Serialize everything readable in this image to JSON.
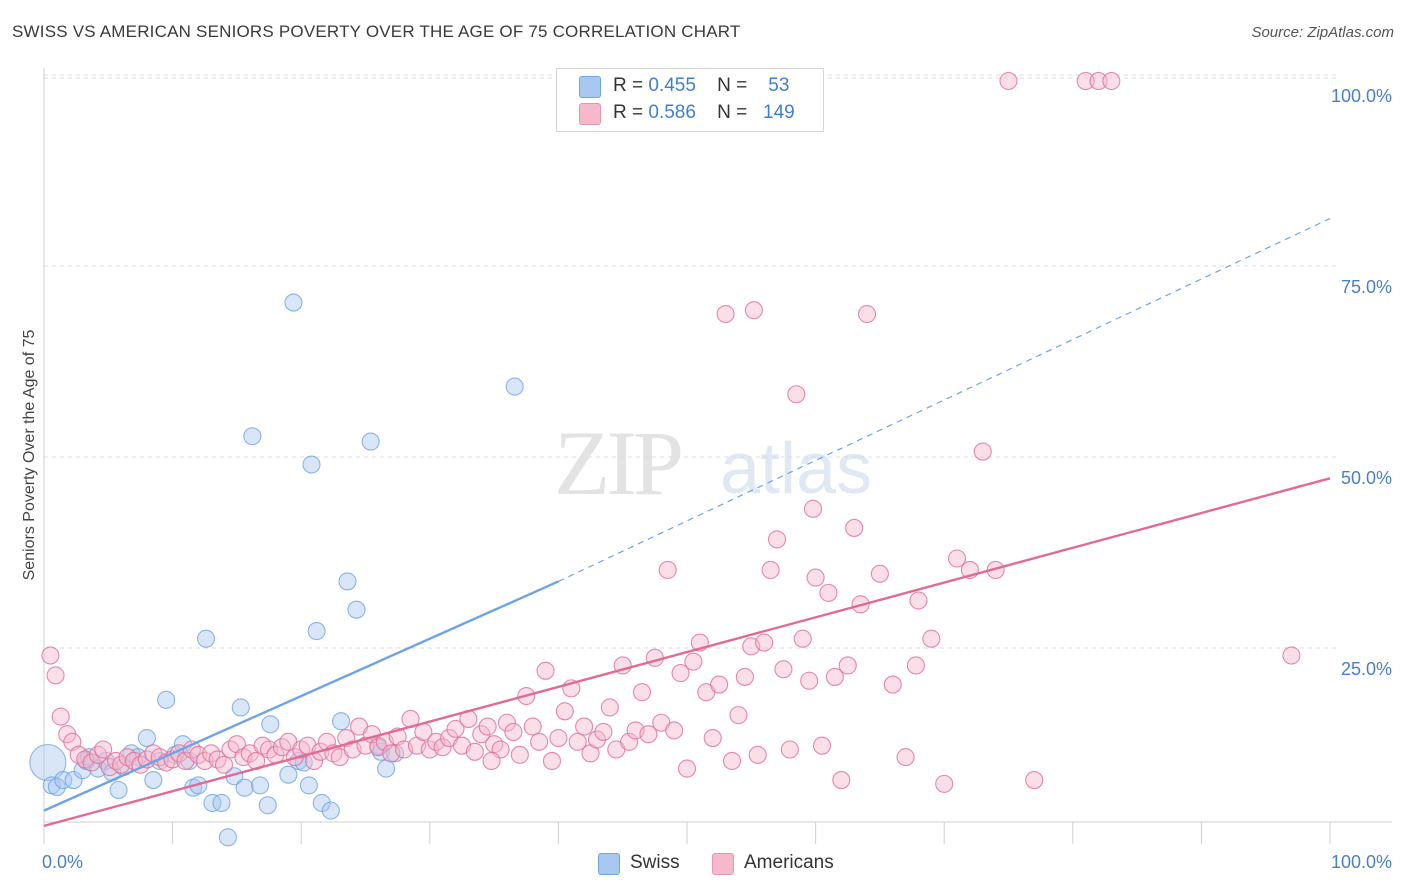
{
  "title": "SWISS VS AMERICAN SENIORS POVERTY OVER THE AGE OF 75 CORRELATION CHART",
  "source": "Source: ZipAtlas.com",
  "watermark": {
    "zip": "ZIP",
    "atlas": "atlas"
  },
  "legend": {
    "rows": [
      {
        "r_label": "R =",
        "r_value": "0.455",
        "n_label": "N =",
        "n_value": "53",
        "color": "#a9c8ef"
      },
      {
        "r_label": "R =",
        "r_value": "0.586",
        "n_label": "N =",
        "n_value": "149",
        "color": "#f6b9cc"
      }
    ]
  },
  "bottom_legend": {
    "swiss": "Swiss",
    "americans": "Americans"
  },
  "chart_data": {
    "type": "scatter",
    "title": "SWISS VS AMERICAN SENIORS POVERTY OVER THE AGE OF 75 CORRELATION CHART",
    "xlabel": "",
    "ylabel": "Seniors Poverty Over the Age of 75",
    "xlim": [
      0,
      100
    ],
    "ylim": [
      0,
      100
    ],
    "x_tick_labels": [
      "0.0%",
      "100.0%"
    ],
    "y_tick_labels": [
      "100.0%",
      "75.0%",
      "50.0%",
      "25.0%"
    ],
    "y_ticks": [
      100,
      75,
      50,
      25
    ],
    "grid": true,
    "legend_position": "top-center",
    "series": [
      {
        "name": "Swiss",
        "color": "#6ea4e4",
        "fill": "#a9c8ef",
        "trend": {
          "x0": 0,
          "y0": 4.5,
          "x1": 40,
          "y1": 34.5,
          "dash_to_x": 100,
          "dash_to_y": 82
        },
        "points": [
          [
            0.3,
            10.8
          ],
          [
            0.6,
            7.8
          ],
          [
            1.0,
            7.6
          ],
          [
            1.5,
            8.5
          ],
          [
            2.3,
            8.5
          ],
          [
            3.0,
            9.8
          ],
          [
            3.3,
            11.0
          ],
          [
            3.5,
            11.5
          ],
          [
            4.2,
            10.0
          ],
          [
            4.8,
            11.0
          ],
          [
            5.3,
            9.5
          ],
          [
            5.8,
            7.2
          ],
          [
            6.2,
            10.2
          ],
          [
            6.8,
            12.0
          ],
          [
            7.3,
            11.5
          ],
          [
            8.0,
            14.0
          ],
          [
            8.5,
            8.5
          ],
          [
            9.0,
            11.0
          ],
          [
            9.5,
            19.0
          ],
          [
            10.2,
            11.8
          ],
          [
            10.8,
            13.2
          ],
          [
            11.3,
            11.0
          ],
          [
            11.6,
            7.5
          ],
          [
            12.0,
            7.8
          ],
          [
            12.6,
            27.0
          ],
          [
            13.1,
            5.5
          ],
          [
            13.8,
            5.5
          ],
          [
            14.3,
            1.0
          ],
          [
            14.8,
            9.0
          ],
          [
            15.6,
            7.5
          ],
          [
            15.3,
            18.0
          ],
          [
            16.2,
            53.5
          ],
          [
            16.8,
            7.8
          ],
          [
            17.4,
            5.2
          ],
          [
            17.6,
            15.8
          ],
          [
            19.0,
            9.2
          ],
          [
            19.8,
            11.0
          ],
          [
            19.4,
            71.0
          ],
          [
            20.2,
            10.8
          ],
          [
            20.6,
            7.8
          ],
          [
            21.6,
            5.5
          ],
          [
            22.3,
            4.5
          ],
          [
            20.8,
            49.8
          ],
          [
            21.2,
            28.0
          ],
          [
            23.1,
            16.2
          ],
          [
            23.6,
            34.5
          ],
          [
            24.3,
            30.8
          ],
          [
            25.4,
            52.8
          ],
          [
            26.2,
            12.2
          ],
          [
            26.6,
            10.0
          ],
          [
            26.0,
            13.0
          ],
          [
            27.3,
            12.0
          ],
          [
            36.6,
            60.0
          ]
        ],
        "sizes_large": [
          [
            0.3,
            10.8
          ]
        ]
      },
      {
        "name": "Americans",
        "color": "#e06b97",
        "fill": "#f6b9cc",
        "trend": {
          "x0": 0,
          "y0": 2.5,
          "x1": 100,
          "y1": 48.0
        },
        "points": [
          [
            0.5,
            24.8
          ],
          [
            0.9,
            22.2
          ],
          [
            1.3,
            16.8
          ],
          [
            1.8,
            14.5
          ],
          [
            2.2,
            13.5
          ],
          [
            2.7,
            11.8
          ],
          [
            3.2,
            11.2
          ],
          [
            3.7,
            10.8
          ],
          [
            4.2,
            11.8
          ],
          [
            4.6,
            12.5
          ],
          [
            5.1,
            10.2
          ],
          [
            5.6,
            11.0
          ],
          [
            6.0,
            10.5
          ],
          [
            6.5,
            11.5
          ],
          [
            7.0,
            11.0
          ],
          [
            7.5,
            10.5
          ],
          [
            8.0,
            11.2
          ],
          [
            8.5,
            12.0
          ],
          [
            9.0,
            11.5
          ],
          [
            9.5,
            10.8
          ],
          [
            10.0,
            11.2
          ],
          [
            10.5,
            12.0
          ],
          [
            11.0,
            11.0
          ],
          [
            11.5,
            12.5
          ],
          [
            12.0,
            11.8
          ],
          [
            12.5,
            11.0
          ],
          [
            13.0,
            12.0
          ],
          [
            13.5,
            11.2
          ],
          [
            14.0,
            10.5
          ],
          [
            14.5,
            12.5
          ],
          [
            15.0,
            13.2
          ],
          [
            15.5,
            11.5
          ],
          [
            16.0,
            12.0
          ],
          [
            16.5,
            11.0
          ],
          [
            17.0,
            13.0
          ],
          [
            17.5,
            12.5
          ],
          [
            18.0,
            11.8
          ],
          [
            18.5,
            12.8
          ],
          [
            19.0,
            13.5
          ],
          [
            19.5,
            11.5
          ],
          [
            20.0,
            12.5
          ],
          [
            20.5,
            13.0
          ],
          [
            21.0,
            11.0
          ],
          [
            21.5,
            12.2
          ],
          [
            22.0,
            13.5
          ],
          [
            22.5,
            12.0
          ],
          [
            23.0,
            11.5
          ],
          [
            23.5,
            14.0
          ],
          [
            24.0,
            12.5
          ],
          [
            24.5,
            15.5
          ],
          [
            25.0,
            13.0
          ],
          [
            25.5,
            14.5
          ],
          [
            26.0,
            12.8
          ],
          [
            26.5,
            13.5
          ],
          [
            27.0,
            12.0
          ],
          [
            27.5,
            14.2
          ],
          [
            28.0,
            12.5
          ],
          [
            28.5,
            16.5
          ],
          [
            29.0,
            13.0
          ],
          [
            29.5,
            14.8
          ],
          [
            30.0,
            12.5
          ],
          [
            30.5,
            13.5
          ],
          [
            31.0,
            12.8
          ],
          [
            31.5,
            14.0
          ],
          [
            32.0,
            15.2
          ],
          [
            32.5,
            13.0
          ],
          [
            33.0,
            16.5
          ],
          [
            33.5,
            12.2
          ],
          [
            34.0,
            14.5
          ],
          [
            34.5,
            15.5
          ],
          [
            35.0,
            13.2
          ],
          [
            35.5,
            12.5
          ],
          [
            36.0,
            16.0
          ],
          [
            36.5,
            14.8
          ],
          [
            37.0,
            11.8
          ],
          [
            37.5,
            19.5
          ],
          [
            38.0,
            15.5
          ],
          [
            38.5,
            13.5
          ],
          [
            39.0,
            22.8
          ],
          [
            39.5,
            11.0
          ],
          [
            40.0,
            14.0
          ],
          [
            40.5,
            17.5
          ],
          [
            41.0,
            20.5
          ],
          [
            41.5,
            13.5
          ],
          [
            42.0,
            15.5
          ],
          [
            42.5,
            12.0
          ],
          [
            43.0,
            13.8
          ],
          [
            43.5,
            14.8
          ],
          [
            44.0,
            18.0
          ],
          [
            44.5,
            12.5
          ],
          [
            45.0,
            23.5
          ],
          [
            45.5,
            13.5
          ],
          [
            46.0,
            15.0
          ],
          [
            46.5,
            20.0
          ],
          [
            47.0,
            14.5
          ],
          [
            47.5,
            24.5
          ],
          [
            48.0,
            16.0
          ],
          [
            48.5,
            36.0
          ],
          [
            49.0,
            15.0
          ],
          [
            49.5,
            22.5
          ],
          [
            50.0,
            10.0
          ],
          [
            50.5,
            24.0
          ],
          [
            51.0,
            26.5
          ],
          [
            51.5,
            20.0
          ],
          [
            52.0,
            14.0
          ],
          [
            52.5,
            21.0
          ],
          [
            53.0,
            69.5
          ],
          [
            53.5,
            11.0
          ],
          [
            54.0,
            17.0
          ],
          [
            54.5,
            22.0
          ],
          [
            55.0,
            26.0
          ],
          [
            55.5,
            11.8
          ],
          [
            56.0,
            26.5
          ],
          [
            56.5,
            36.0
          ],
          [
            57.0,
            40.0
          ],
          [
            57.5,
            23.0
          ],
          [
            58.0,
            12.5
          ],
          [
            58.5,
            59.0
          ],
          [
            59.0,
            27.0
          ],
          [
            59.5,
            21.5
          ],
          [
            60.0,
            35.0
          ],
          [
            60.5,
            13.0
          ],
          [
            61.0,
            33.0
          ],
          [
            61.5,
            22.0
          ],
          [
            62.0,
            8.5
          ],
          [
            62.5,
            23.5
          ],
          [
            63.0,
            41.5
          ],
          [
            63.5,
            31.5
          ],
          [
            64.0,
            69.5
          ],
          [
            65.0,
            35.5
          ],
          [
            66.0,
            21.0
          ],
          [
            67.0,
            11.5
          ],
          [
            68.0,
            32.0
          ],
          [
            69.0,
            27.0
          ],
          [
            70.0,
            8.0
          ],
          [
            71.0,
            37.5
          ],
          [
            72.0,
            36.0
          ],
          [
            73.0,
            51.5
          ],
          [
            74.0,
            36.0
          ],
          [
            75.0,
            100.0
          ],
          [
            77.0,
            8.5
          ],
          [
            81.0,
            100.0
          ],
          [
            82.0,
            100.0
          ],
          [
            83.0,
            100.0
          ],
          [
            97.0,
            24.8
          ],
          [
            55.2,
            70.0
          ],
          [
            59.8,
            44.0
          ],
          [
            67.8,
            23.5
          ],
          [
            34.8,
            11.0
          ]
        ]
      }
    ]
  }
}
